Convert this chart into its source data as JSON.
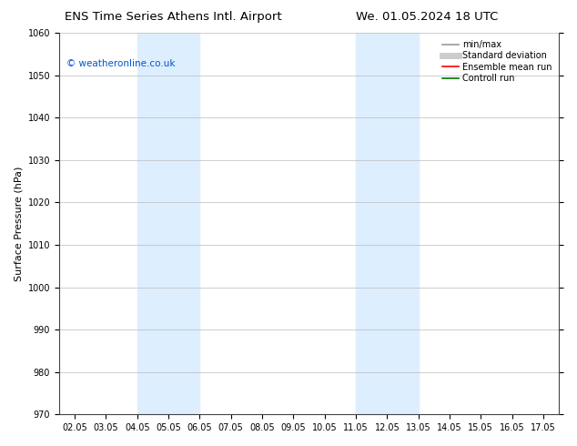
{
  "title_left": "ENS Time Series Athens Intl. Airport",
  "title_right": "We. 01.05.2024 18 UTC",
  "ylabel": "Surface Pressure (hPa)",
  "ylim": [
    970,
    1060
  ],
  "yticks": [
    970,
    980,
    990,
    1000,
    1010,
    1020,
    1030,
    1040,
    1050,
    1060
  ],
  "xlim_start": 1.5,
  "xlim_end": 17.5,
  "xtick_labels": [
    "02.05",
    "03.05",
    "04.05",
    "05.05",
    "06.05",
    "07.05",
    "08.05",
    "09.05",
    "10.05",
    "11.05",
    "12.05",
    "13.05",
    "14.05",
    "15.05",
    "16.05",
    "17.05"
  ],
  "xtick_positions": [
    2,
    3,
    4,
    5,
    6,
    7,
    8,
    9,
    10,
    11,
    12,
    13,
    14,
    15,
    16,
    17
  ],
  "shaded_bands": [
    {
      "x_start": 4.0,
      "x_end": 6.0,
      "color": "#ddeeff"
    },
    {
      "x_start": 11.0,
      "x_end": 13.0,
      "color": "#ddeeff"
    }
  ],
  "watermark_text": "© weatheronline.co.uk",
  "watermark_color": "#0055cc",
  "legend_items": [
    {
      "label": "min/max",
      "color": "#999999",
      "lw": 1.2
    },
    {
      "label": "Standard deviation",
      "color": "#cccccc",
      "lw": 5
    },
    {
      "label": "Ensemble mean run",
      "color": "#ff0000",
      "lw": 1.2
    },
    {
      "label": "Controll run",
      "color": "#007700",
      "lw": 1.2
    }
  ],
  "bg_color": "#ffffff",
  "grid_color": "#bbbbbb",
  "title_fontsize": 9.5,
  "tick_fontsize": 7,
  "ylabel_fontsize": 8,
  "watermark_fontsize": 7.5,
  "legend_fontsize": 7
}
